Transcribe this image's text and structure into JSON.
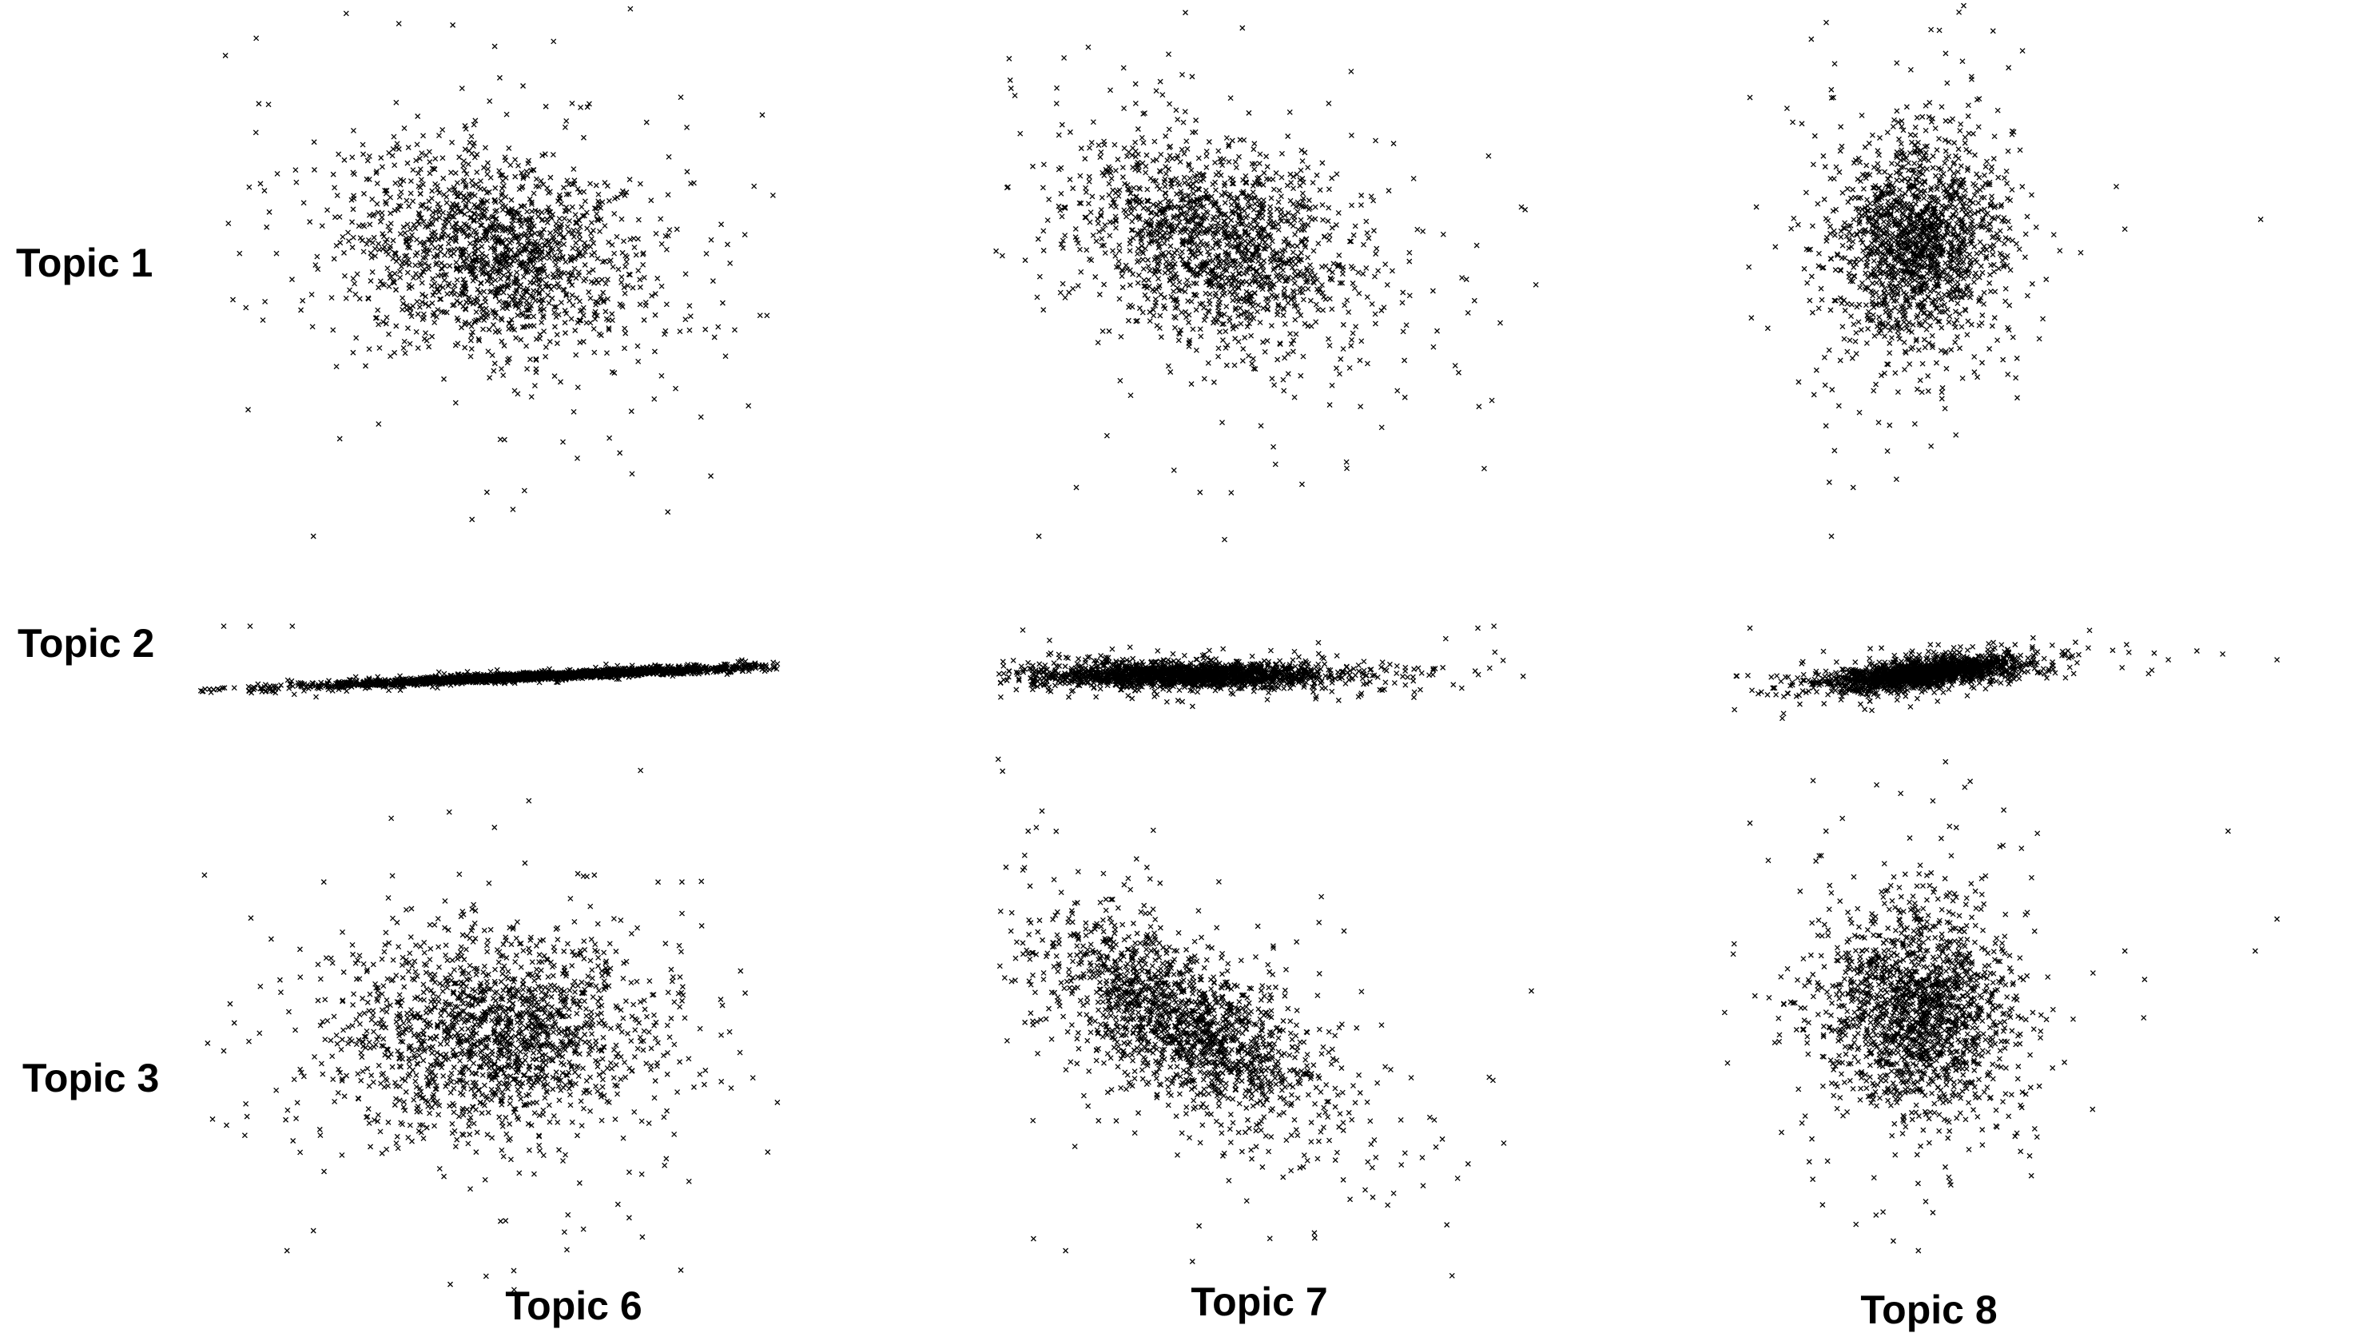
{
  "row_labels": [
    "Topic 1",
    "Topic 2",
    "Topic 3"
  ],
  "col_labels": [
    "Topic 6",
    "Topic 7",
    "Topic 8"
  ],
  "marker": "x",
  "marker_color": "#000000",
  "chart_data": {
    "type": "scatter",
    "title": "",
    "layout": "3x3 scatter matrix; rows = Topic 1, Topic 2, Topic 3; columns = Topic 6, Topic 7, Topic 8",
    "axes_shown": false,
    "grid": false,
    "panels": [
      {
        "row": "Topic 1",
        "col": "Topic 6",
        "n": 1600,
        "center": [
          0.52,
          0.48
        ],
        "spread": [
          0.13,
          0.1
        ],
        "corr": -0.2,
        "outliers": [
          [
            0.17,
            -0.1
          ],
          [
            0.22,
            0.1
          ],
          [
            0.03,
            0.48
          ],
          [
            0.1,
            0.48
          ],
          [
            0.96,
            0.46
          ],
          [
            0.53,
            1.2
          ],
          [
            0.6,
            1.2
          ]
        ]
      },
      {
        "row": "Topic 1",
        "col": "Topic 7",
        "n": 1600,
        "center": [
          0.36,
          0.5
        ],
        "spread": [
          0.12,
          0.1
        ],
        "corr": -0.35,
        "outliers": [
          [
            0.03,
            -0.1
          ],
          [
            0.1,
            0.0
          ],
          [
            0.87,
            0.68
          ],
          [
            0.02,
            1.0
          ],
          [
            0.03,
            1.2
          ],
          [
            0.3,
            1.2
          ],
          [
            0.71,
            0.4
          ]
        ]
      },
      {
        "row": "Topic 1",
        "col": "Topic 8",
        "n": 1600,
        "center": [
          0.31,
          0.5
        ],
        "spread": [
          0.07,
          0.1
        ],
        "corr": 0.1,
        "outliers": [
          [
            0.15,
            -0.1
          ],
          [
            0.19,
            0.0
          ],
          [
            0.69,
            0.53
          ],
          [
            0.94,
            0.55
          ],
          [
            0.88,
            1.0
          ],
          [
            0.88,
            1.2
          ],
          [
            0.0,
            0.8
          ],
          [
            0.31,
            1.2
          ]
        ]
      },
      {
        "row": "Topic 2",
        "col": "Topic 6",
        "n": 2200,
        "center": [
          0.6,
          0.45
        ],
        "spread": [
          0.2,
          0.05
        ],
        "corr": 0.93,
        "outliers": [
          [
            0.0,
            0.97
          ],
          [
            0.05,
            0.97
          ],
          [
            0.13,
            0.97
          ],
          [
            0.81,
            0.55
          ],
          [
            0.88,
            0.57
          ],
          [
            0.98,
            0.6
          ]
        ]
      },
      {
        "row": "Topic 2",
        "col": "Topic 7",
        "n": 2000,
        "center": [
          0.3,
          0.46
        ],
        "spread": [
          0.13,
          0.06
        ],
        "corr": 0.0,
        "outliers": [
          [
            0.0,
            0.93
          ],
          [
            0.85,
            0.95
          ],
          [
            0.88,
            0.97
          ],
          [
            0.79,
            0.84
          ]
        ]
      },
      {
        "row": "Topic 2",
        "col": "Topic 8",
        "n": 1900,
        "center": [
          0.32,
          0.48
        ],
        "spread": [
          0.08,
          0.08
        ],
        "corr": 0.6,
        "outliers": [
          [
            0.0,
            0.95
          ],
          [
            0.55,
            0.5
          ],
          [
            0.77,
            0.62
          ],
          [
            0.87,
            0.68
          ],
          [
            0.97,
            0.62
          ]
        ]
      },
      {
        "row": "Topic 3",
        "col": "Topic 6",
        "n": 1700,
        "center": [
          0.52,
          0.49
        ],
        "spread": [
          0.14,
          0.12
        ],
        "corr": 0.0,
        "outliers": [
          [
            0.0,
            0.45
          ],
          [
            0.02,
            0.52
          ],
          [
            0.12,
            -0.05
          ],
          [
            0.17,
            0.0
          ],
          [
            0.55,
            -0.1
          ],
          [
            0.98,
            0.65
          ],
          [
            0.09,
            0.73
          ]
        ]
      },
      {
        "row": "Topic 3",
        "col": "Topic 7",
        "n": 1700,
        "center": [
          0.3,
          0.52
        ],
        "spread": [
          0.12,
          0.12
        ],
        "corr": -0.65,
        "outliers": [
          [
            0.0,
            0.72
          ],
          [
            0.02,
            -0.02
          ],
          [
            0.08,
            -0.05
          ],
          [
            0.6,
            0.75
          ],
          [
            0.95,
            0.6
          ],
          [
            0.01,
            1.0
          ]
        ]
      },
      {
        "row": "Topic 3",
        "col": "Topic 8",
        "n": 1700,
        "center": [
          0.31,
          0.55
        ],
        "spread": [
          0.08,
          0.12
        ],
        "corr": 0.0,
        "outliers": [
          [
            0.0,
            1.02
          ],
          [
            0.14,
            1.0
          ],
          [
            0.31,
            -0.05
          ],
          [
            0.69,
            0.7
          ],
          [
            0.93,
            0.7
          ],
          [
            0.88,
            1.0
          ],
          [
            0.97,
            0.78
          ]
        ]
      }
    ]
  }
}
